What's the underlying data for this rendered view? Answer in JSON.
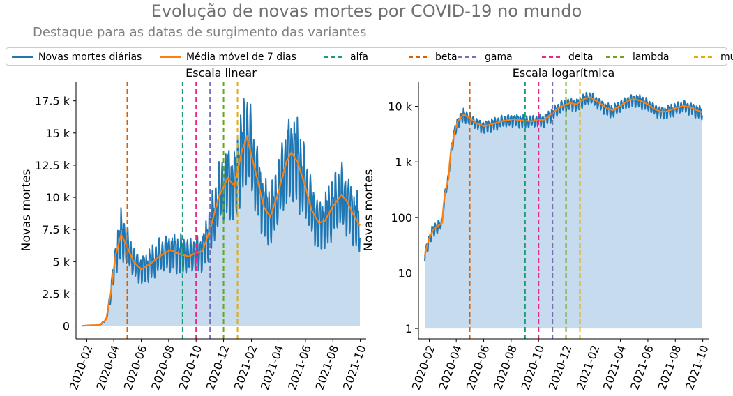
{
  "title": "Evolução de novas mortes por COVID-19 no mundo",
  "subtitle": "Destaque para as datas de surgimento das variantes",
  "legend": [
    {
      "label": "Novas mortes diárias",
      "color": "#1f77b4",
      "style": "solid"
    },
    {
      "label": "Média móvel de 7 dias",
      "color": "#ff7f0e",
      "style": "solid"
    },
    {
      "label": "alfa",
      "color": "#1b9e77",
      "style": "dashed"
    },
    {
      "label": "beta",
      "color": "#d95f02",
      "style": "dashed"
    },
    {
      "label": "gama",
      "color": "#7570b3",
      "style": "dashed"
    },
    {
      "label": "delta",
      "color": "#e7298a",
      "style": "dashed"
    },
    {
      "label": "lambda",
      "color": "#66a61e",
      "style": "dashed"
    },
    {
      "label": "mu",
      "color": "#e6ab02",
      "style": "dashed"
    }
  ],
  "chart_data": [
    {
      "type": "line",
      "title": "Escala linear",
      "xlabel": "",
      "ylabel": "Novas mortes",
      "scale": "linear",
      "ylim": [
        -1000,
        19000
      ],
      "yticks": [
        0,
        2500,
        5000,
        7500,
        10000,
        12500,
        15000,
        17500
      ],
      "ytick_labels": [
        "0",
        "2.5 k",
        "5 k",
        "7.5 k",
        "10 k",
        "12.5 k",
        "15 k",
        "17.5 k"
      ],
      "xlim": [
        "2020-01-08",
        "2021-10-14"
      ],
      "xticks": [
        "2020-02-01",
        "2020-04-01",
        "2020-06-01",
        "2020-08-01",
        "2020-10-01",
        "2020-12-01",
        "2021-02-01",
        "2021-04-01",
        "2021-06-01",
        "2021-08-01",
        "2021-10-01"
      ],
      "xtick_labels": [
        "2020-02",
        "2020-04",
        "2020-06",
        "2020-08",
        "2020-10",
        "2020-12",
        "2021-02",
        "2021-04",
        "2021-06",
        "2021-08",
        "2021-10"
      ],
      "grid": false
    },
    {
      "type": "line",
      "title": "Escala logarítmica",
      "xlabel": "",
      "ylabel": "Novas mortes",
      "scale": "log",
      "ylim": [
        0.65,
        28000
      ],
      "yticks": [
        1,
        10,
        100,
        1000,
        10000
      ],
      "ytick_labels": [
        "1",
        "10",
        "100",
        "1 k",
        "10 k"
      ],
      "xlim": [
        "2020-01-08",
        "2021-10-14"
      ],
      "xticks": [
        "2020-02-01",
        "2020-04-01",
        "2020-06-01",
        "2020-08-01",
        "2020-10-01",
        "2020-12-01",
        "2021-02-01",
        "2021-04-01",
        "2021-06-01",
        "2021-08-01",
        "2021-10-01"
      ],
      "xtick_labels": [
        "2020-02",
        "2020-04",
        "2020-06",
        "2020-08",
        "2020-10",
        "2020-12",
        "2021-02",
        "2021-04",
        "2021-06",
        "2021-08",
        "2021-10"
      ],
      "grid": false
    }
  ],
  "series": {
    "daily_name": "Novas mortes diárias",
    "avg_name": "Média móvel de 7 dias",
    "daily_color": "#1f77b4",
    "avg_color": "#ff7f0e",
    "fill_color": "#c6dbee",
    "avg_keypoints": [
      [
        "2020-01-22",
        20
      ],
      [
        "2020-02-10",
        60
      ],
      [
        "2020-03-01",
        80
      ],
      [
        "2020-03-15",
        500
      ],
      [
        "2020-03-25",
        2500
      ],
      [
        "2020-04-05",
        5500
      ],
      [
        "2020-04-17",
        7100
      ],
      [
        "2020-04-25",
        6600
      ],
      [
        "2020-05-15",
        5000
      ],
      [
        "2020-06-01",
        4400
      ],
      [
        "2020-06-20",
        4800
      ],
      [
        "2020-07-15",
        5500
      ],
      [
        "2020-08-05",
        5900
      ],
      [
        "2020-08-25",
        5600
      ],
      [
        "2020-09-15",
        5400
      ],
      [
        "2020-10-01",
        5700
      ],
      [
        "2020-10-15",
        5800
      ],
      [
        "2020-11-01",
        7500
      ],
      [
        "2020-11-20",
        10000
      ],
      [
        "2020-12-10",
        11500
      ],
      [
        "2020-12-25",
        10900
      ],
      [
        "2021-01-10",
        13500
      ],
      [
        "2021-01-22",
        14700
      ],
      [
        "2021-02-10",
        12000
      ],
      [
        "2021-03-01",
        9200
      ],
      [
        "2021-03-15",
        8500
      ],
      [
        "2021-04-01",
        10300
      ],
      [
        "2021-04-20",
        12800
      ],
      [
        "2021-05-01",
        13500
      ],
      [
        "2021-05-15",
        12700
      ],
      [
        "2021-06-01",
        10800
      ],
      [
        "2021-06-15",
        9000
      ],
      [
        "2021-07-01",
        8000
      ],
      [
        "2021-07-15",
        8200
      ],
      [
        "2021-08-01",
        9300
      ],
      [
        "2021-08-20",
        10200
      ],
      [
        "2021-09-01",
        9700
      ],
      [
        "2021-09-15",
        8700
      ],
      [
        "2021-09-30",
        7800
      ]
    ],
    "data_start": "2020-01-22",
    "data_end": "2021-09-30"
  },
  "variants": [
    {
      "name": "alfa",
      "date": "2020-09-01",
      "color": "#1b9e77"
    },
    {
      "name": "beta",
      "date": "2020-05-01",
      "color": "#d95f02"
    },
    {
      "name": "gama",
      "date": "2020-11-01",
      "color": "#7570b3"
    },
    {
      "name": "delta",
      "date": "2020-10-01",
      "color": "#e7298a"
    },
    {
      "name": "lambda",
      "date": "2020-12-01",
      "color": "#66a61e"
    },
    {
      "name": "mu",
      "date": "2021-01-01",
      "color": "#e6ab02"
    }
  ]
}
